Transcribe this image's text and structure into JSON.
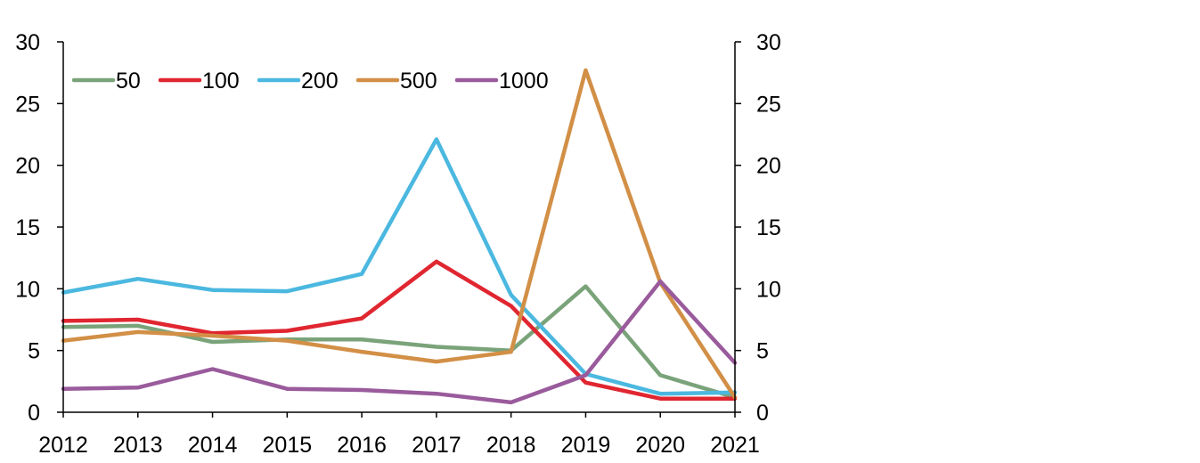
{
  "chart_data": {
    "type": "line",
    "title": "",
    "xlabel": "",
    "ylabel": "",
    "categories": [
      "2012",
      "2013",
      "2014",
      "2015",
      "2016",
      "2017",
      "2018",
      "2019",
      "2020",
      "2021"
    ],
    "ylim": [
      0,
      30
    ],
    "yticks": [
      "0",
      "5",
      "10",
      "15",
      "20",
      "25",
      "30"
    ],
    "y2lim": [
      0,
      30
    ],
    "y2ticks": [
      "0",
      "5",
      "10",
      "15",
      "20",
      "25",
      "30"
    ],
    "grid": false,
    "legend_position": "top-left",
    "series": [
      {
        "name": "50",
        "color": "#7aa37a",
        "values": [
          6.9,
          7.0,
          5.7,
          5.9,
          5.9,
          5.3,
          5.0,
          10.2,
          3.0,
          1.2
        ]
      },
      {
        "name": "100",
        "color": "#e02630",
        "values": [
          7.4,
          7.5,
          6.4,
          6.6,
          7.6,
          12.2,
          8.6,
          2.4,
          1.1,
          1.1
        ]
      },
      {
        "name": "200",
        "color": "#4bb8e0",
        "values": [
          9.7,
          10.8,
          9.9,
          9.8,
          11.2,
          22.1,
          9.5,
          3.1,
          1.5,
          1.6
        ]
      },
      {
        "name": "500",
        "color": "#d28f46",
        "values": [
          5.8,
          6.5,
          6.2,
          5.8,
          4.9,
          4.1,
          4.9,
          27.7,
          10.5,
          1.2
        ]
      },
      {
        "name": "1000",
        "color": "#9a5b9c",
        "values": [
          1.9,
          2.0,
          3.5,
          1.9,
          1.8,
          1.5,
          0.8,
          3.0,
          10.6,
          4.0
        ]
      }
    ]
  }
}
